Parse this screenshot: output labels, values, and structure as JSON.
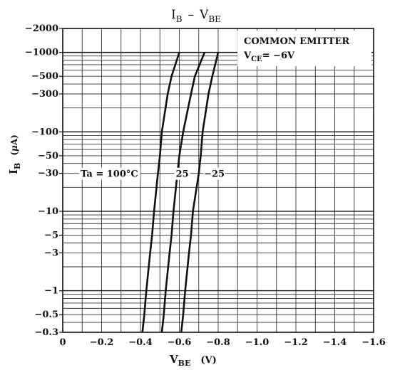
{
  "chart_data": {
    "type": "line",
    "title": "I_B - V_BE",
    "title_parts": {
      "i": "I",
      "i_sub": "B",
      "dash": "–",
      "v": "V",
      "v_sub": "BE"
    },
    "xlabel_parts": {
      "v": "V",
      "v_sub": "BE",
      "unit": "(V)"
    },
    "ylabel_parts": {
      "i": "I",
      "i_sub": "B",
      "unit_open": "(",
      "unit_mu": "μ",
      "unit_rest": "A)"
    },
    "x_scale": "linear",
    "y_scale": "log",
    "xlim": [
      0,
      -1.6
    ],
    "ylim": [
      -0.3,
      -2000
    ],
    "x_ticks": [
      0,
      -0.2,
      -0.4,
      -0.6,
      -0.8,
      -1.0,
      -1.2,
      -1.4,
      -1.6
    ],
    "x_tick_labels": [
      "0",
      "−0.2",
      "−0.4",
      "−0.6",
      "−0.8",
      "−1.0",
      "−1.2",
      "−1.4",
      "−1.6"
    ],
    "y_ticks": [
      -0.3,
      -0.5,
      -1,
      -3,
      -5,
      -10,
      -30,
      -50,
      -100,
      -300,
      -500,
      -1000,
      -2000
    ],
    "y_tick_labels": [
      "−0.3",
      "−0.5",
      "−1",
      "−3",
      "−5",
      "−10",
      "−30",
      "−50",
      "−100",
      "−300",
      "−500",
      "−1000",
      "−2000"
    ],
    "grid": true,
    "annotation_box": {
      "line1": "COMMON EMITTER",
      "line2_prefix": "V",
      "line2_sub": "CE",
      "line2_value": "= −6V"
    },
    "series": [
      {
        "name": "Ta=100°C",
        "points": [
          [
            -0.41,
            -0.3
          ],
          [
            -0.42,
            -0.5
          ],
          [
            -0.43,
            -1
          ],
          [
            -0.45,
            -3
          ],
          [
            -0.46,
            -5
          ],
          [
            -0.47,
            -10
          ],
          [
            -0.49,
            -30
          ],
          [
            -0.5,
            -50
          ],
          [
            -0.51,
            -100
          ],
          [
            -0.54,
            -300
          ],
          [
            -0.56,
            -500
          ],
          [
            -0.6,
            -1000
          ]
        ]
      },
      {
        "name": "25",
        "points": [
          [
            -0.51,
            -0.3
          ],
          [
            -0.52,
            -0.5
          ],
          [
            -0.53,
            -1
          ],
          [
            -0.55,
            -3
          ],
          [
            -0.56,
            -5
          ],
          [
            -0.57,
            -10
          ],
          [
            -0.59,
            -30
          ],
          [
            -0.6,
            -50
          ],
          [
            -0.62,
            -100
          ],
          [
            -0.66,
            -300
          ],
          [
            -0.68,
            -500
          ],
          [
            -0.73,
            -1000
          ]
        ]
      },
      {
        "name": "−25",
        "points": [
          [
            -0.61,
            -0.3
          ],
          [
            -0.62,
            -0.5
          ],
          [
            -0.63,
            -1
          ],
          [
            -0.65,
            -3
          ],
          [
            -0.66,
            -5
          ],
          [
            -0.67,
            -10
          ],
          [
            -0.7,
            -30
          ],
          [
            -0.71,
            -50
          ],
          [
            -0.72,
            -100
          ],
          [
            -0.75,
            -300
          ],
          [
            -0.77,
            -500
          ],
          [
            -0.8,
            -1000
          ]
        ]
      }
    ],
    "series_labels": [
      "Ta = 100°C",
      "25",
      "−25"
    ],
    "series_label_y": -30
  }
}
